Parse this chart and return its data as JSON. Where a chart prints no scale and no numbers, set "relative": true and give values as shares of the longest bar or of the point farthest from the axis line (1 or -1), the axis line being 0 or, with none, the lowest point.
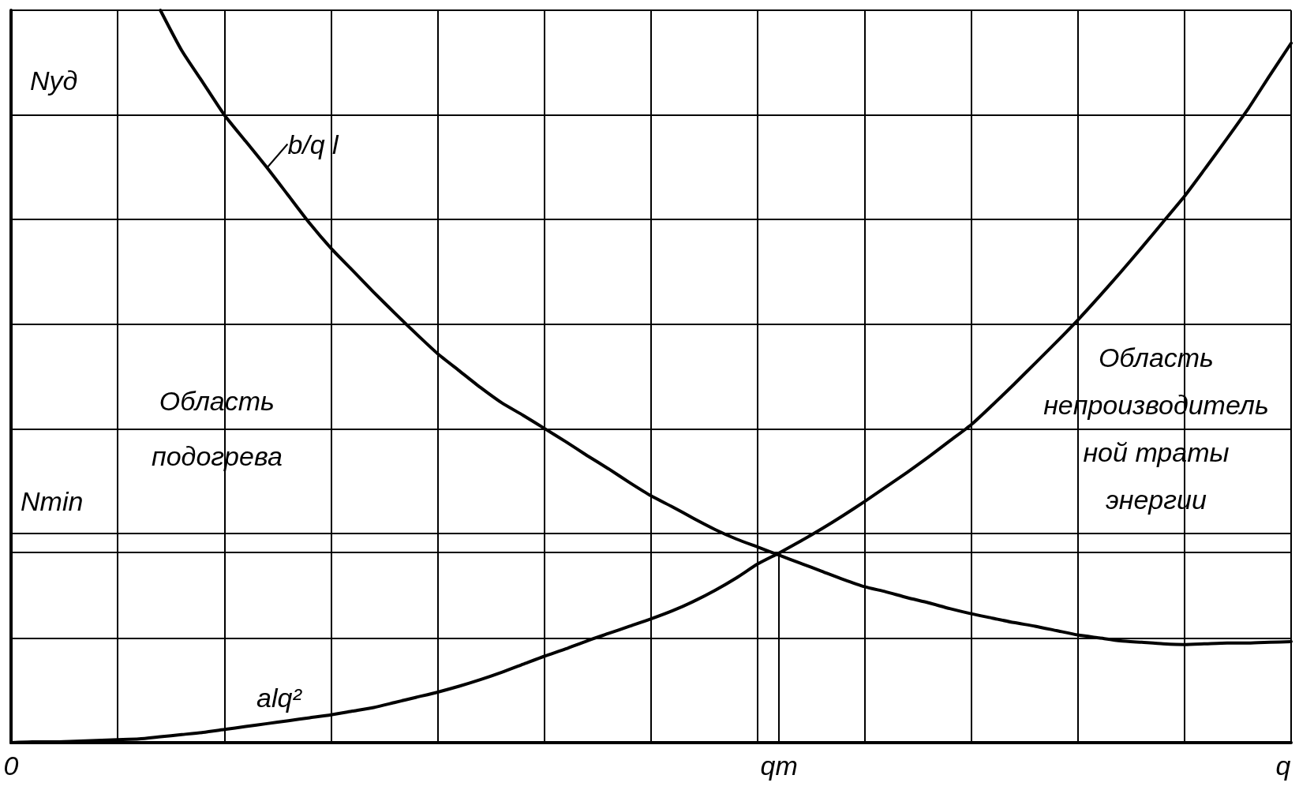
{
  "chart_data": {
    "type": "line",
    "relative": true,
    "xlabel": "q",
    "ylabel": "Nуд",
    "categories": [
      "0",
      null,
      null,
      null,
      null,
      null,
      null,
      null,
      null,
      null,
      null,
      null,
      null,
      null,
      null,
      null,
      null,
      null,
      null,
      null,
      null,
      null,
      null,
      null,
      null,
      null,
      null,
      null,
      null,
      null,
      null,
      null,
      null,
      null,
      null,
      null,
      "qm",
      null,
      null,
      null,
      null,
      null,
      null,
      null,
      null,
      null,
      null,
      null,
      null,
      null,
      null,
      null,
      null,
      null,
      null,
      null,
      null,
      null,
      null,
      null,
      null
    ],
    "series": [
      {
        "name": "b/q l",
        "color": "#000000",
        "values": [
          null,
          null,
          null,
          null,
          null,
          null,
          null,
          1.0,
          0.945,
          0.901,
          0.857,
          0.821,
          0.785,
          0.747,
          0.709,
          0.675,
          0.645,
          0.615,
          0.586,
          0.558,
          0.531,
          0.508,
          0.485,
          0.464,
          0.447,
          0.429,
          0.411,
          0.392,
          0.374,
          0.355,
          0.337,
          0.322,
          0.306,
          0.291,
          0.278,
          0.267,
          0.256,
          0.245,
          0.234,
          0.223,
          0.213,
          0.206,
          0.198,
          0.191,
          0.183,
          0.176,
          0.17,
          0.164,
          0.159,
          0.153,
          0.147,
          0.143,
          0.139,
          0.137,
          0.135,
          0.134,
          0.135,
          0.136,
          0.136,
          0.137,
          0.138
        ]
      },
      {
        "name": "alq²",
        "color": "#000000",
        "values": [
          0,
          0.001,
          0.001,
          0.002,
          0.003,
          0.004,
          0.005,
          0.008,
          0.011,
          0.014,
          0.018,
          0.022,
          0.026,
          0.03,
          0.034,
          0.038,
          0.043,
          0.048,
          0.055,
          0.062,
          0.069,
          0.077,
          0.086,
          0.096,
          0.107,
          0.118,
          0.128,
          0.139,
          0.149,
          0.159,
          0.169,
          0.18,
          0.193,
          0.208,
          0.225,
          0.244,
          0.259,
          0.275,
          0.292,
          0.31,
          0.329,
          0.349,
          0.369,
          0.39,
          0.412,
          0.434,
          0.461,
          0.489,
          0.518,
          0.547,
          0.577,
          0.609,
          0.642,
          0.676,
          0.711,
          0.746,
          0.785,
          0.825,
          0.866,
          0.911,
          0.955
        ]
      }
    ],
    "ref_lines": [
      {
        "axis": "x",
        "value": "qm"
      },
      {
        "axis": "y",
        "value": 0.257,
        "label": "Nmin"
      }
    ],
    "annotations": [
      "Область\nподогрева",
      "Область\nнепроизводитель\nной траты\nэнергии"
    ],
    "grid": true
  }
}
